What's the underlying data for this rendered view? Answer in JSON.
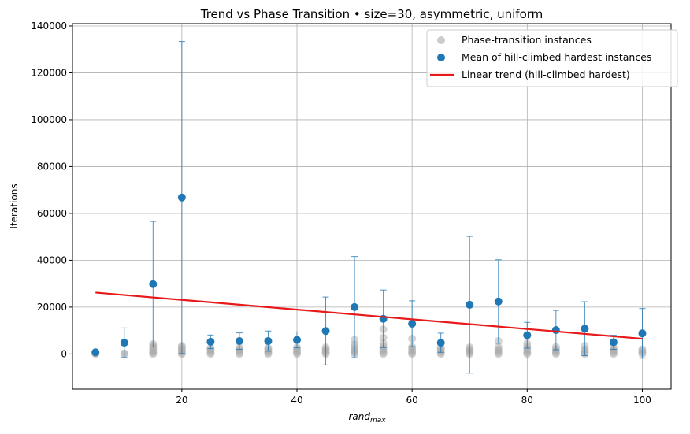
{
  "chart_data": {
    "type": "scatter",
    "title": "Trend vs Phase Transition  •  size=30, asymmetric, uniform",
    "xlabel_main": "rand",
    "xlabel_sub": "max",
    "ylabel": "Iterations",
    "xlim": [
      1,
      105
    ],
    "ylim": [
      -15000,
      141000
    ],
    "xticks": [
      20,
      40,
      60,
      80,
      100
    ],
    "yticks": [
      0,
      20000,
      40000,
      60000,
      80000,
      100000,
      120000,
      140000
    ],
    "grid": true,
    "legend_position": "top-right",
    "colors": {
      "phase": "#a9a9a9",
      "mean": "#1f77b4",
      "trend": "#e8191a",
      "grid": "#b0b0b0"
    },
    "series": [
      {
        "name": "Phase-transition instances",
        "kind": "scatter",
        "points": [
          [
            5,
            0
          ],
          [
            5,
            300
          ],
          [
            10,
            0
          ],
          [
            10,
            300
          ],
          [
            15,
            0
          ],
          [
            15,
            500
          ],
          [
            15,
            1000
          ],
          [
            15,
            1800
          ],
          [
            15,
            2600
          ],
          [
            15,
            3500
          ],
          [
            15,
            4200
          ],
          [
            20,
            0
          ],
          [
            20,
            500
          ],
          [
            20,
            1200
          ],
          [
            20,
            2000
          ],
          [
            20,
            2800
          ],
          [
            20,
            3500
          ],
          [
            25,
            0
          ],
          [
            25,
            600
          ],
          [
            25,
            1300
          ],
          [
            25,
            2000
          ],
          [
            25,
            2600
          ],
          [
            30,
            0
          ],
          [
            30,
            600
          ],
          [
            30,
            1300
          ],
          [
            30,
            2000
          ],
          [
            30,
            2800
          ],
          [
            35,
            0
          ],
          [
            35,
            600
          ],
          [
            35,
            1200
          ],
          [
            35,
            2000
          ],
          [
            35,
            2600
          ],
          [
            40,
            0
          ],
          [
            40,
            600
          ],
          [
            40,
            1300
          ],
          [
            40,
            2000
          ],
          [
            40,
            2800
          ],
          [
            45,
            0
          ],
          [
            45,
            600
          ],
          [
            45,
            1300
          ],
          [
            45,
            2000
          ],
          [
            45,
            2800
          ],
          [
            50,
            0
          ],
          [
            50,
            600
          ],
          [
            50,
            1200
          ],
          [
            50,
            2000
          ],
          [
            50,
            3000
          ],
          [
            50,
            4000
          ],
          [
            50,
            6000
          ],
          [
            55,
            0
          ],
          [
            55,
            600
          ],
          [
            55,
            1300
          ],
          [
            55,
            2200
          ],
          [
            55,
            3200
          ],
          [
            55,
            4500
          ],
          [
            55,
            7000
          ],
          [
            55,
            10500
          ],
          [
            60,
            0
          ],
          [
            60,
            600
          ],
          [
            60,
            1300
          ],
          [
            60,
            2200
          ],
          [
            60,
            3000
          ],
          [
            60,
            6500
          ],
          [
            65,
            0
          ],
          [
            65,
            600
          ],
          [
            65,
            1300
          ],
          [
            65,
            2000
          ],
          [
            65,
            2800
          ],
          [
            70,
            0
          ],
          [
            70,
            600
          ],
          [
            70,
            1300
          ],
          [
            70,
            2000
          ],
          [
            70,
            2800
          ],
          [
            75,
            0
          ],
          [
            75,
            600
          ],
          [
            75,
            1300
          ],
          [
            75,
            2000
          ],
          [
            75,
            3000
          ],
          [
            75,
            5500
          ],
          [
            80,
            0
          ],
          [
            80,
            600
          ],
          [
            80,
            1300
          ],
          [
            80,
            2200
          ],
          [
            80,
            3200
          ],
          [
            80,
            4500
          ],
          [
            85,
            0
          ],
          [
            85,
            600
          ],
          [
            85,
            1300
          ],
          [
            85,
            2000
          ],
          [
            85,
            3000
          ],
          [
            90,
            0
          ],
          [
            90,
            600
          ],
          [
            90,
            1300
          ],
          [
            90,
            2000
          ],
          [
            90,
            3500
          ],
          [
            95,
            0
          ],
          [
            95,
            600
          ],
          [
            95,
            1300
          ],
          [
            95,
            2000
          ],
          [
            95,
            2800
          ],
          [
            100,
            0
          ],
          [
            100,
            600
          ],
          [
            100,
            1300
          ],
          [
            100,
            2000
          ]
        ]
      },
      {
        "name": "Mean of hill-climbed hardest instances",
        "kind": "errorbar",
        "points": [
          {
            "x": 5,
            "y": 700,
            "err": 300
          },
          {
            "x": 10,
            "y": 4800,
            "err": 6300
          },
          {
            "x": 15,
            "y": 29800,
            "err": 26800
          },
          {
            "x": 20,
            "y": 66800,
            "err": 66600
          },
          {
            "x": 25,
            "y": 5200,
            "err": 2900
          },
          {
            "x": 30,
            "y": 5500,
            "err": 3500
          },
          {
            "x": 35,
            "y": 5500,
            "err": 4300
          },
          {
            "x": 40,
            "y": 6000,
            "err": 3400
          },
          {
            "x": 45,
            "y": 9800,
            "err": 14500
          },
          {
            "x": 50,
            "y": 20000,
            "err": 21600
          },
          {
            "x": 55,
            "y": 15000,
            "err": 12300
          },
          {
            "x": 60,
            "y": 12900,
            "err": 9800
          },
          {
            "x": 65,
            "y": 4800,
            "err": 4100
          },
          {
            "x": 70,
            "y": 21000,
            "err": 29200
          },
          {
            "x": 75,
            "y": 22400,
            "err": 17800
          },
          {
            "x": 80,
            "y": 8000,
            "err": 5500
          },
          {
            "x": 85,
            "y": 10200,
            "err": 8400
          },
          {
            "x": 90,
            "y": 10800,
            "err": 11500
          },
          {
            "x": 95,
            "y": 5000,
            "err": 3000
          },
          {
            "x": 100,
            "y": 8800,
            "err": 10600
          }
        ]
      },
      {
        "name": "Linear trend (hill-climbed hardest)",
        "kind": "line",
        "points": [
          [
            5,
            26200
          ],
          [
            100,
            6500
          ]
        ]
      }
    ]
  }
}
